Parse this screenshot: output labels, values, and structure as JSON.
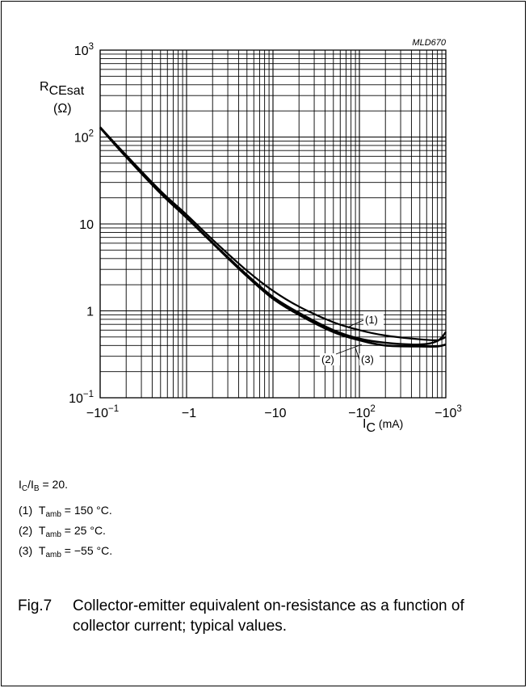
{
  "chart_data": {
    "type": "line",
    "figure_id": "MLD670",
    "x_scale": "log",
    "y_scale": "log",
    "x_ticks": [
      {
        "value": -0.1,
        "base": "−10",
        "exp": "−1"
      },
      {
        "value": -1,
        "base": "−1",
        "exp": ""
      },
      {
        "value": -10,
        "base": "−10",
        "exp": ""
      },
      {
        "value": -100,
        "base": "−10",
        "exp": "2"
      },
      {
        "value": -1000,
        "base": "−10",
        "exp": "3"
      }
    ],
    "y_ticks": [
      {
        "value": 0.1,
        "base": "10",
        "exp": "−1"
      },
      {
        "value": 1,
        "base": "1",
        "exp": ""
      },
      {
        "value": 10,
        "base": "10",
        "exp": ""
      },
      {
        "value": 100,
        "base": "10",
        "exp": "2"
      },
      {
        "value": 1000,
        "base": "10",
        "exp": "3"
      }
    ],
    "xlim": [
      -0.1,
      -1000
    ],
    "ylim": [
      0.1,
      1000
    ],
    "xlabel": {
      "main": "I",
      "sub": "C",
      "unit": "(mA)"
    },
    "ylabel": {
      "main": "R",
      "sub": "CEsat",
      "unit": "(Ω)"
    },
    "grid": true,
    "series": [
      {
        "label": "(1)",
        "x": [
          -0.1,
          -0.2,
          -0.5,
          -1,
          -2,
          -5,
          -10,
          -20,
          -50,
          -100,
          -200,
          -500,
          -800,
          -1000
        ],
        "y": [
          130,
          62,
          24,
          12.8,
          6.6,
          2.9,
          1.7,
          1.12,
          0.74,
          0.6,
          0.52,
          0.47,
          0.46,
          0.5
        ]
      },
      {
        "label": "(2)",
        "x": [
          -0.1,
          -0.2,
          -0.5,
          -1,
          -2,
          -5,
          -10,
          -20,
          -50,
          -100,
          -200,
          -500,
          -800,
          -1000
        ],
        "y": [
          130,
          60,
          23,
          12,
          6.1,
          2.6,
          1.45,
          0.95,
          0.6,
          0.48,
          0.43,
          0.41,
          0.45,
          0.57
        ]
      },
      {
        "label": "(3)",
        "x": [
          -0.1,
          -0.2,
          -0.5,
          -1,
          -2,
          -5,
          -10,
          -20,
          -50,
          -100,
          -200,
          -500,
          -800,
          -1000
        ],
        "y": [
          128,
          59,
          22.5,
          11.8,
          6.0,
          2.5,
          1.38,
          0.9,
          0.57,
          0.46,
          0.4,
          0.39,
          0.39,
          0.41
        ]
      }
    ]
  },
  "notes": {
    "ratio": {
      "a": "I",
      "a_sub": "C",
      "sep": "/I",
      "b_sub": "B",
      "tail": " = 20."
    },
    "items": [
      {
        "num": "(1)",
        "t": "T",
        "t_sub": "amb",
        "text": " = 150 °C."
      },
      {
        "num": "(2)",
        "t": "T",
        "t_sub": "amb",
        "text": " = 25 °C."
      },
      {
        "num": "(3)",
        "t": "T",
        "t_sub": "amb",
        "text": " = −55 °C."
      }
    ]
  },
  "caption": {
    "fig": "Fig.7",
    "text": "Collector-emitter equivalent on-resistance as a function of collector current; typical values."
  }
}
